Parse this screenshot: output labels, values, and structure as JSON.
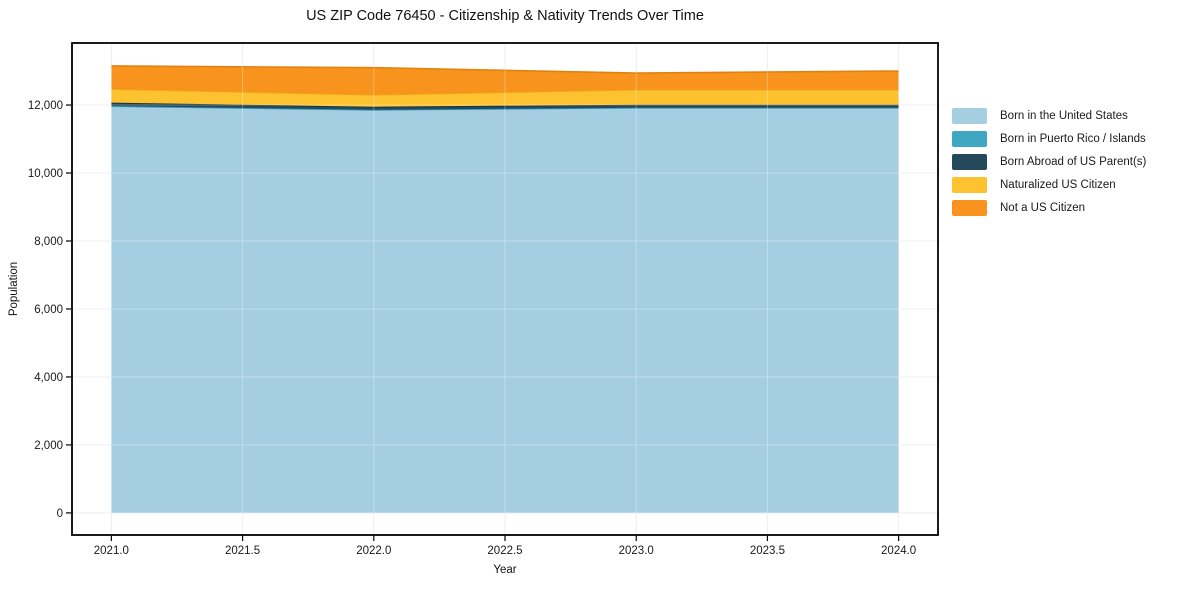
{
  "chart_data": {
    "type": "area",
    "stacked": true,
    "title": "US ZIP Code 76450 - Citizenship & Nativity Trends Over Time",
    "xlabel": "Year",
    "ylabel": "Population",
    "x": [
      2021,
      2022,
      2023,
      2024
    ],
    "series": [
      {
        "name": "Born in the United States",
        "color": "#a5cee3",
        "edge_color": "#8cc1dc",
        "values": [
          11960,
          11850,
          11910,
          11910
        ]
      },
      {
        "name": "Born in Puerto Rico / Islands",
        "color": "#3fa7c2",
        "edge_color": "#2e94af",
        "values": [
          10,
          10,
          10,
          10
        ]
      },
      {
        "name": "Born Abroad of US Parent(s)",
        "color": "#24495d",
        "edge_color": "#17333f",
        "values": [
          100,
          90,
          90,
          90
        ]
      },
      {
        "name": "Naturalized US Citizen",
        "color": "#fdc22f",
        "edge_color": "#eeab15",
        "values": [
          400,
          350,
          440,
          440
        ]
      },
      {
        "name": "Not a US Citizen",
        "color": "#f8941d",
        "edge_color": "#e2820e",
        "values": [
          680,
          800,
          490,
          550
        ]
      }
    ],
    "totals": [
      13150,
      13100,
      12940,
      13000
    ],
    "xlim": [
      2020.85,
      2024.15
    ],
    "ylim": [
      -650,
      13825
    ],
    "x_ticks": {
      "values": [
        2021.0,
        2021.5,
        2022.0,
        2022.5,
        2023.0,
        2023.5,
        2024.0
      ],
      "labels": [
        "2021.0",
        "2021.5",
        "2022.0",
        "2022.5",
        "2023.0",
        "2023.5",
        "2024.0"
      ]
    },
    "y_ticks": {
      "values": [
        0,
        2000,
        4000,
        6000,
        8000,
        10000,
        12000
      ],
      "labels": [
        "0",
        "2,000",
        "4,000",
        "6,000",
        "8,000",
        "10,000",
        "12,000"
      ]
    },
    "grid": true,
    "grid_color": "#e8e8e8",
    "spine_color": "#000000",
    "legend_position": "right-outside",
    "background_color": "#ffffff"
  }
}
